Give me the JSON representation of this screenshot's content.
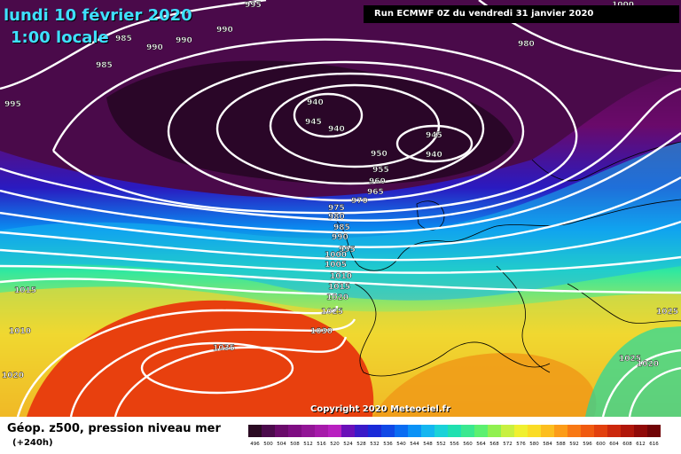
{
  "title": {
    "date": "lundi 10 février 2020",
    "time": "1:00 locale",
    "run": "Run ECMWF 0Z du vendredi 31 janvier 2020",
    "copyright": "Copyright 2020 Meteociel.fr"
  },
  "legend": {
    "title": "Géop. z500, pression niveau mer",
    "subtitle": "(+240h)",
    "scale_values": [
      "496",
      "500",
      "504",
      "508",
      "512",
      "516",
      "520",
      "524",
      "528",
      "532",
      "536",
      "540",
      "544",
      "548",
      "552",
      "556",
      "560",
      "564",
      "568",
      "572",
      "576",
      "580",
      "584",
      "588",
      "592",
      "596",
      "600",
      "604",
      "608",
      "612",
      "616"
    ],
    "scale_colors": [
      "#2a0a22",
      "#4b0a4b",
      "#6a0a6a",
      "#7e0d82",
      "#921596",
      "#a61aaa",
      "#b820c0",
      "#6a10b8",
      "#3a1ac8",
      "#1a2ad8",
      "#1048e6",
      "#0a6cf2",
      "#0b92f6",
      "#14b6f0",
      "#1ad2d8",
      "#20e0b0",
      "#3ae890",
      "#5cf070",
      "#90f050",
      "#c8f040",
      "#f0f030",
      "#fadc26",
      "#fcbe1e",
      "#fc9c18",
      "#f87814",
      "#f05a10",
      "#e2400e",
      "#cc280c",
      "#b0160a",
      "#900a08",
      "#700406"
    ]
  },
  "pressure_labels": [
    {
      "text": "995"
    },
    {
      "text": "985"
    },
    {
      "text": "990"
    },
    {
      "text": "990"
    },
    {
      "text": "990"
    },
    {
      "text": "985"
    },
    {
      "text": "995"
    },
    {
      "text": "940"
    },
    {
      "text": "945"
    },
    {
      "text": "940"
    },
    {
      "text": "945"
    },
    {
      "text": "940"
    },
    {
      "text": "950"
    },
    {
      "text": "955"
    },
    {
      "text": "960"
    },
    {
      "text": "965"
    },
    {
      "text": "970"
    },
    {
      "text": "975"
    },
    {
      "text": "980"
    },
    {
      "text": "985"
    },
    {
      "text": "990"
    },
    {
      "text": "995"
    },
    {
      "text": "1000"
    },
    {
      "text": "1005"
    },
    {
      "text": "1010"
    },
    {
      "text": "1015"
    },
    {
      "text": "1020"
    },
    {
      "text": "1025"
    },
    {
      "text": "1030"
    },
    {
      "text": "1035"
    },
    {
      "text": "1015"
    },
    {
      "text": "1010"
    },
    {
      "text": "1020"
    },
    {
      "text": "1025"
    },
    {
      "text": "1025"
    },
    {
      "text": "1020"
    },
    {
      "text": "980"
    },
    {
      "text": "1000"
    }
  ]
}
